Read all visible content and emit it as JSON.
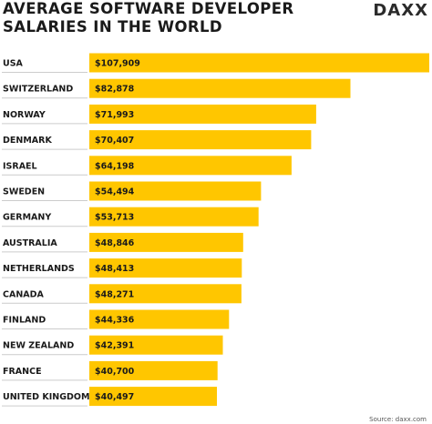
{
  "header": {
    "title_line1": "AVERAGE SOFTWARE DEVELOPER",
    "title_line2": "SALARIES IN THE WORLD",
    "logo": "DAXX"
  },
  "footer": {
    "source": "Source: daxx.com"
  },
  "colors": {
    "bar": "#ffc600",
    "gridline": "#cccccc",
    "text": "#1a1a1a"
  },
  "chart_data": {
    "type": "bar",
    "orientation": "horizontal",
    "title": "AVERAGE SOFTWARE DEVELOPER SALARIES IN THE WORLD",
    "categories": [
      "USA",
      "SWITZERLAND",
      "NORWAY",
      "DENMARK",
      "ISRAEL",
      "SWEDEN",
      "GERMANY",
      "AUSTRALIA",
      "NETHERLANDS",
      "CANADA",
      "FINLAND",
      "NEW ZEALAND",
      "FRANCE",
      "UNITED KINGDOM"
    ],
    "values": [
      107909,
      82878,
      71993,
      70407,
      64198,
      54494,
      53713,
      48846,
      48413,
      48271,
      44336,
      42391,
      40700,
      40497
    ],
    "value_labels": [
      "$107,909",
      "$82,878",
      "$71,993",
      "$70,407",
      "$64,198",
      "$54,494",
      "$53,713",
      "$48,846",
      "$48,413",
      "$48,271",
      "$44,336",
      "$42,391",
      "$40,700",
      "$40,497"
    ],
    "xlabel": "",
    "ylabel": "",
    "xlim": [
      0,
      107909
    ],
    "grid": false,
    "legend": "none"
  }
}
